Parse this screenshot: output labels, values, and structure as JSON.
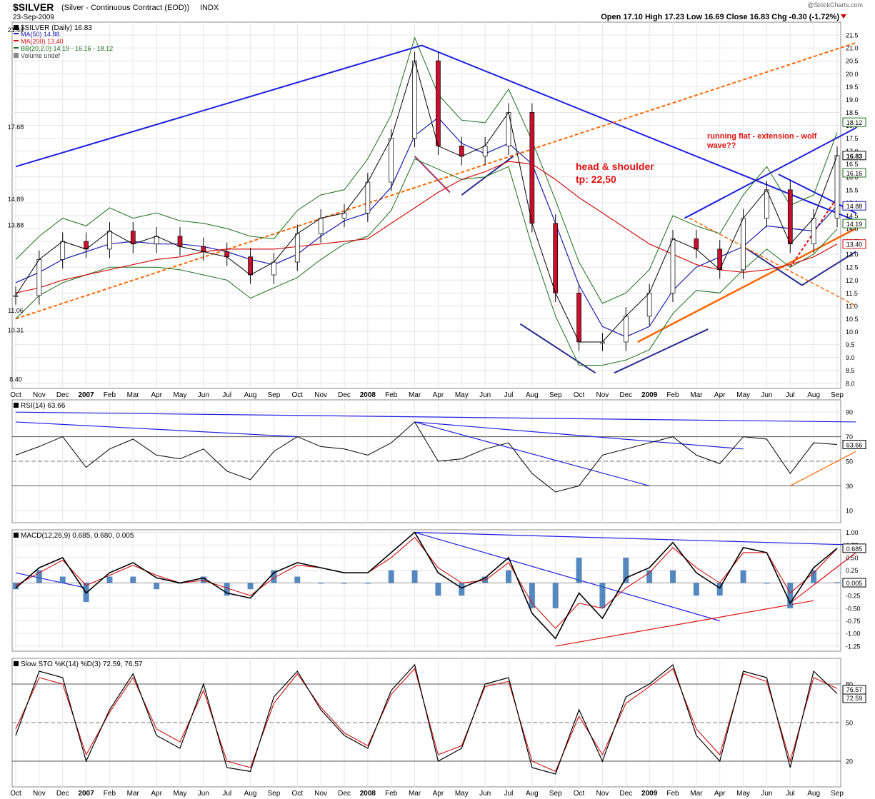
{
  "header": {
    "symbol": "$SILVER",
    "name": "(Silver - Continuous Contract (EOD))",
    "exchange": "INDX",
    "date": "23-Sep-2009",
    "watermark": "@StockCharts.com",
    "ohlc_text": "Open 17.10  High 17.23  Low 16.69  Close 16.83  Chg -0.30 (-1.72%)"
  },
  "legend": [
    {
      "text": "$SILVER (Daily) 16.83",
      "color": "#000000"
    },
    {
      "text": "MA(50) 14.88",
      "color": "#1a1ab0"
    },
    {
      "text": "MA(200) 13.40",
      "color": "#d01010"
    },
    {
      "text": "BB(20,2.0) 14.19 - 16.16 - 18.12",
      "color": "#1a6e1a"
    },
    {
      "text": "Volume undef",
      "color": "#444444"
    }
  ],
  "annotations": {
    "hs_title": "head & shoulder",
    "hs_tp": "tp: 22,50",
    "flat_line1": "running flat - extension - wolf",
    "flat_line2": "wave??"
  },
  "chart_data": [
    {
      "type": "line",
      "panel": "price",
      "x": [
        "Oct 2006",
        "Nov",
        "Dec",
        "Jan 2007",
        "Feb",
        "Mar",
        "Apr",
        "May",
        "Jun",
        "Jul",
        "Aug",
        "Sep",
        "Oct",
        "Nov",
        "Dec",
        "Jan 2008",
        "Feb",
        "Mar",
        "Apr",
        "May",
        "Jun",
        "Jul",
        "Aug",
        "Sep",
        "Oct",
        "Nov",
        "Dec",
        "Jan 2009",
        "Feb",
        "Mar",
        "Apr",
        "May",
        "Jun",
        "Jul",
        "Aug",
        "Sep"
      ],
      "series": [
        {
          "name": "$SILVER (Daily)",
          "values": [
            11.4,
            12.8,
            13.5,
            13.2,
            13.9,
            13.4,
            13.7,
            13.3,
            13.1,
            12.9,
            12.2,
            12.7,
            13.8,
            14.4,
            14.6,
            15.8,
            17.5,
            20.5,
            17.2,
            16.8,
            17.2,
            18.5,
            14.2,
            11.5,
            9.6,
            9.6,
            10.6,
            11.5,
            13.6,
            13.2,
            12.4,
            14.4,
            15.5,
            13.4,
            14.4,
            16.83
          ]
        },
        {
          "name": "MA(50)",
          "values": [
            11.9,
            12.3,
            12.8,
            13.1,
            13.4,
            13.5,
            13.4,
            13.4,
            13.3,
            13.1,
            12.8,
            12.6,
            13.0,
            13.7,
            14.3,
            14.6,
            15.6,
            17.6,
            18.3,
            17.3,
            16.9,
            17.3,
            16.5,
            14.2,
            11.8,
            10.2,
            9.8,
            10.2,
            11.6,
            12.5,
            12.9,
            13.3,
            14.1,
            14.0,
            13.9,
            14.88
          ]
        },
        {
          "name": "MA(200)",
          "values": [
            11.5,
            11.7,
            12.0,
            12.2,
            12.4,
            12.6,
            12.8,
            12.9,
            13.1,
            13.2,
            13.2,
            13.2,
            13.3,
            13.4,
            13.5,
            13.6,
            14.2,
            14.8,
            15.4,
            15.9,
            16.2,
            16.6,
            16.5,
            15.9,
            15.2,
            14.6,
            14.0,
            13.4,
            13.0,
            12.6,
            12.4,
            12.3,
            12.4,
            12.6,
            12.9,
            13.4
          ]
        }
      ],
      "price_labels": [
        {
          "text": "14.89",
          "x": "Feb 2007",
          "y": 14.89
        },
        {
          "text": "11.06",
          "x": "Aug 2007",
          "y": 11.06
        },
        {
          "text": "21.44",
          "x": "Mar 2008",
          "y": 21.44
        },
        {
          "text": "13.88",
          "x": "Oct 2008",
          "y": 13.88
        },
        {
          "text": "10.31",
          "x": "Sep 2008",
          "y": 10.31
        },
        {
          "text": "8.40",
          "x": "Oct 2008",
          "y": 8.4
        },
        {
          "text": "17.68",
          "x": "Sep 2009",
          "y": 17.68
        }
      ],
      "y_ticks": [
        "8.0",
        "8.5",
        "9.0",
        "9.5",
        "10.0",
        "10.5",
        "11.0",
        "11.5",
        "12.0",
        "12.5",
        "13.0",
        "13.5",
        "14.0",
        "14.5",
        "15.0",
        "15.5",
        "16.0",
        "16.5",
        "17.0",
        "17.5",
        "18.0",
        "18.5",
        "19.0",
        "19.5",
        "20.0",
        "20.5",
        "21.0",
        "21.5"
      ],
      "ylim": [
        7.8,
        22.0
      ],
      "right_badges": [
        "18.12",
        "16.83",
        "16.16",
        "14.88",
        "14.19",
        "13.40"
      ],
      "grid": true
    },
    {
      "type": "line",
      "panel": "rsi",
      "title": "RSI(14) 63.66",
      "series": [
        {
          "name": "RSI(14)",
          "values": [
            55,
            62,
            70,
            45,
            60,
            68,
            55,
            52,
            60,
            42,
            35,
            58,
            70,
            62,
            60,
            55,
            65,
            82,
            50,
            52,
            60,
            65,
            40,
            25,
            30,
            55,
            60,
            65,
            70,
            55,
            48,
            70,
            68,
            40,
            65,
            63.66
          ]
        }
      ],
      "y_ticks": [
        "10",
        "30",
        "50",
        "70",
        "90"
      ],
      "ylim": [
        0,
        100
      ],
      "badge": "63.66"
    },
    {
      "type": "line",
      "panel": "macd",
      "title": "MACD(12,26,9) 0.685, 0.680, 0.005",
      "series": [
        {
          "name": "MACD",
          "values": [
            -0.1,
            0.3,
            0.5,
            -0.2,
            0.2,
            0.4,
            0.1,
            0.0,
            0.1,
            -0.2,
            -0.3,
            0.2,
            0.4,
            0.3,
            0.2,
            0.2,
            0.6,
            1.0,
            0.2,
            -0.1,
            0.1,
            0.5,
            -0.6,
            -1.1,
            -0.2,
            -0.7,
            0.1,
            0.3,
            0.8,
            0.2,
            -0.1,
            0.7,
            0.6,
            -0.4,
            0.3,
            0.685
          ]
        },
        {
          "name": "Signal",
          "values": [
            -0.05,
            0.2,
            0.45,
            -0.05,
            0.15,
            0.35,
            0.15,
            0.0,
            0.05,
            -0.1,
            -0.25,
            0.1,
            0.35,
            0.3,
            0.2,
            0.2,
            0.5,
            0.9,
            0.3,
            0.0,
            0.05,
            0.4,
            -0.4,
            -0.9,
            -0.4,
            -0.5,
            -0.1,
            0.2,
            0.7,
            0.3,
            0.0,
            0.6,
            0.6,
            -0.2,
            0.2,
            0.68
          ]
        }
      ],
      "y_ticks": [
        "-1.25",
        "-1.00",
        "-0.75",
        "-0.50",
        "-0.25",
        "0.00",
        "0.25",
        "0.50",
        "0.75",
        "1.00"
      ],
      "ylim": [
        -1.35,
        1.05
      ],
      "badges": [
        "0.685",
        "0.005"
      ]
    },
    {
      "type": "line",
      "panel": "sto",
      "title": "Slow STO %K(14) %D(3) 72.59, 76.57",
      "series": [
        {
          "name": "%K",
          "values": [
            40,
            90,
            85,
            20,
            60,
            88,
            40,
            30,
            80,
            15,
            12,
            70,
            90,
            60,
            40,
            30,
            75,
            95,
            20,
            30,
            80,
            85,
            15,
            10,
            60,
            20,
            70,
            80,
            95,
            40,
            20,
            90,
            85,
            15,
            90,
            72.59
          ]
        },
        {
          "name": "%D",
          "values": [
            45,
            85,
            80,
            25,
            58,
            85,
            45,
            35,
            75,
            20,
            15,
            65,
            88,
            62,
            42,
            32,
            72,
            92,
            25,
            32,
            78,
            82,
            20,
            12,
            55,
            25,
            65,
            78,
            92,
            45,
            25,
            88,
            82,
            20,
            85,
            76.57
          ]
        }
      ],
      "y_ticks": [
        "20",
        "50",
        "80"
      ],
      "ylim": [
        0,
        100
      ],
      "badges": [
        "76.57",
        "72.59"
      ]
    }
  ],
  "x_axis_labels": [
    "Oct",
    "Nov",
    "Dec",
    "2007",
    "Feb",
    "Mar",
    "Apr",
    "May",
    "Jun",
    "Jul",
    "Aug",
    "Sep",
    "Oct",
    "Nov",
    "Dec",
    "2008",
    "Feb",
    "Mar",
    "Apr",
    "May",
    "Jun",
    "Jul",
    "Aug",
    "Sep",
    "Oct",
    "Nov",
    "Dec",
    "2009",
    "Feb",
    "Mar",
    "Apr",
    "May",
    "Jun",
    "Jul",
    "Aug",
    "Sep"
  ],
  "colors": {
    "price": "#000000",
    "ma50": "#1a1ab0",
    "ma200": "#d01010",
    "bb": "#1a6e1a",
    "trend_blue": "#1e1ee0",
    "trend_orange": "#ff6600",
    "annotation_red": "#e01010",
    "histogram": "#2b6cb0"
  }
}
